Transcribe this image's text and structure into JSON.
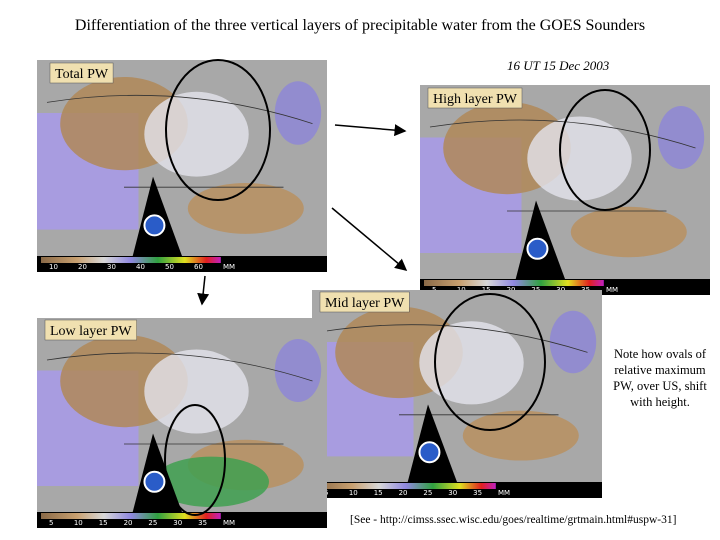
{
  "title": "Differentiation of the three vertical layers of precipitable water from the GOES Sounders",
  "timestamp": "16 UT  15 Dec 2003",
  "panels": [
    {
      "label": "Total PW",
      "scale": [
        10,
        20,
        30,
        40,
        50,
        60
      ],
      "unit": "MM"
    },
    {
      "label": "High layer PW",
      "scale": [
        5,
        10,
        15,
        20,
        25,
        30,
        35
      ],
      "unit": "MM"
    },
    {
      "label": "Mid layer PW",
      "scale": [
        5,
        10,
        15,
        20,
        25,
        30,
        35
      ],
      "unit": "MM"
    },
    {
      "label": "Low layer PW",
      "scale": [
        5,
        10,
        15,
        20,
        25,
        30,
        35
      ],
      "unit": "MM"
    }
  ],
  "note": "Note how ovals of relative maximum PW, over US, shift with height.",
  "source": "[See - http://cimss.ssec.wisc.edu/goes/realtime/grtmain.html#uspw-31]"
}
